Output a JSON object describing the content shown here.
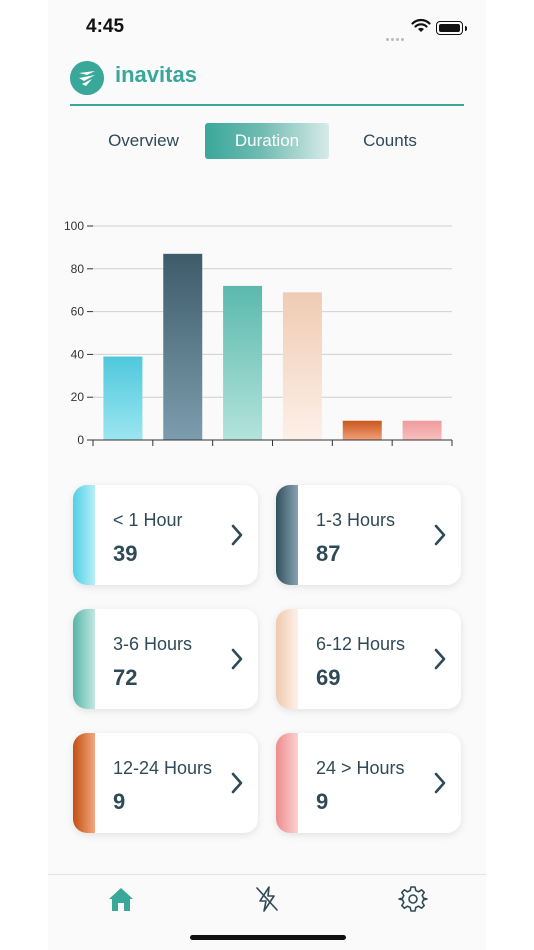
{
  "status_bar": {
    "time": "4:45"
  },
  "header": {
    "brand": "inavitas",
    "accent_color": "#3aa79b"
  },
  "tabs": [
    {
      "label": "Overview",
      "selected": false
    },
    {
      "label": "Duration",
      "selected": true
    },
    {
      "label": "Counts",
      "selected": false
    }
  ],
  "chart_data": {
    "type": "bar",
    "categories": [
      "< 1 Hour",
      "1-3 Hours",
      "3-6 Hours",
      "6-12 Hours",
      "12-24 Hours",
      "24 > Hours"
    ],
    "values": [
      39,
      87,
      72,
      69,
      9,
      9
    ],
    "ylim": [
      0,
      100
    ],
    "yticks": [
      "0",
      "20",
      "40",
      "60",
      "80",
      "100"
    ],
    "grid": true,
    "colors": [
      [
        "#4fc8dc",
        "#9be6f0"
      ],
      [
        "#3e5b6a",
        "#7c9dae"
      ],
      [
        "#5bb9ac",
        "#b3e3dc"
      ],
      [
        "#efcbb3",
        "#fdf0e8"
      ],
      [
        "#c9571b",
        "#f1a07a"
      ],
      [
        "#ef9a9a",
        "#f8c0c0"
      ]
    ]
  },
  "cards": [
    {
      "label": "< 1 Hour",
      "value": "39",
      "color_from": "#4fd0e6",
      "color_to": "#b8eef6"
    },
    {
      "label": "1-3 Hours",
      "value": "87",
      "color_from": "#33505e",
      "color_to": "#86a3b1"
    },
    {
      "label": "3-6 Hours",
      "value": "72",
      "color_from": "#55b6a8",
      "color_to": "#c2e8e2"
    },
    {
      "label": "6-12 Hours",
      "value": "69",
      "color_from": "#f0c9ad",
      "color_to": "#fdf1e9"
    },
    {
      "label": "12-24 Hours",
      "value": "9",
      "color_from": "#c24f12",
      "color_to": "#f3a77f"
    },
    {
      "label": "24 > Hours",
      "value": "9",
      "color_from": "#ee8c8c",
      "color_to": "#fbd1d1"
    }
  ],
  "tab_bar": {
    "items": [
      {
        "icon": "home-icon",
        "active": true
      },
      {
        "icon": "lightning-off-icon",
        "active": false
      },
      {
        "icon": "gear-icon",
        "active": false
      }
    ]
  }
}
